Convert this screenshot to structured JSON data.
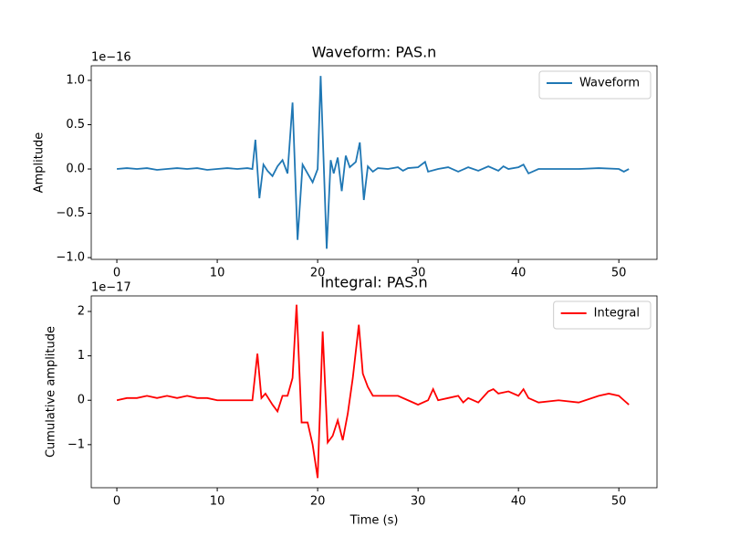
{
  "chart_data": [
    {
      "type": "line",
      "title": "Waveform: PAS.n",
      "ylabel": "Amplitude",
      "y_offset_label": "1e−16",
      "xlim": [
        -2.55,
        53.8
      ],
      "xticks": [
        0,
        10,
        20,
        30,
        40,
        50
      ],
      "ylim": [
        -1.02,
        1.165
      ],
      "yticks": [
        {
          "value": -1,
          "label": "−1.0"
        },
        {
          "value": -0.5,
          "label": "−0.5"
        },
        {
          "value": 0,
          "label": "0.0"
        },
        {
          "value": 0.5,
          "label": "0.5"
        },
        {
          "value": 1,
          "label": "1.0"
        }
      ],
      "legend": "upper right",
      "x": [
        0,
        1,
        2,
        3,
        4,
        5,
        6,
        7,
        8,
        9,
        10,
        11,
        12,
        13,
        13.5,
        13.8,
        14.2,
        14.6,
        15,
        15.5,
        16,
        16.5,
        17,
        17.5,
        18,
        18.5,
        19,
        19.5,
        20,
        20.3,
        20.9,
        21.3,
        21.6,
        22,
        22.4,
        22.8,
        23.2,
        23.8,
        24.2,
        24.6,
        25,
        25.5,
        26,
        27,
        28,
        28.5,
        29,
        30,
        30.7,
        31,
        32,
        33,
        34,
        35,
        36,
        37,
        38,
        38.5,
        39,
        40,
        40.5,
        41,
        42,
        44,
        46,
        48,
        50,
        50.5,
        51
      ],
      "series": [
        {
          "name": "Waveform",
          "color": "#1f77b4",
          "values": [
            0,
            0.01,
            0,
            0.01,
            -0.01,
            0,
            0.01,
            0,
            0.01,
            -0.01,
            0,
            0.01,
            0,
            0.01,
            0,
            0.33,
            -0.33,
            0.05,
            -0.02,
            -0.08,
            0.03,
            0.1,
            -0.05,
            0.75,
            -0.8,
            0.05,
            -0.05,
            -0.15,
            0,
            1.05,
            -0.9,
            0.1,
            -0.05,
            0.13,
            -0.25,
            0.15,
            0.02,
            0.08,
            0.3,
            -0.35,
            0.03,
            -0.03,
            0.01,
            0,
            0.02,
            -0.02,
            0.01,
            0.02,
            0.08,
            -0.03,
            0,
            0.02,
            -0.03,
            0.02,
            -0.02,
            0.03,
            -0.02,
            0.03,
            0,
            0.02,
            0.05,
            -0.05,
            0,
            0,
            0,
            0.01,
            0,
            -0.03,
            0
          ]
        }
      ]
    },
    {
      "type": "line",
      "title": "Integral: PAS.n",
      "xlabel": "Time (s)",
      "ylabel": "Cumulative amplitude",
      "y_offset_label": "1e−17",
      "xlim": [
        -2.55,
        53.8
      ],
      "xticks": [
        0,
        10,
        20,
        30,
        40,
        50
      ],
      "ylim": [
        -1.97,
        2.35
      ],
      "yticks": [
        {
          "value": -1,
          "label": "−1"
        },
        0,
        1,
        2
      ],
      "legend": "upper right",
      "x": [
        0,
        1,
        2,
        3,
        4,
        5,
        6,
        7,
        8,
        9,
        10,
        13.5,
        14,
        14.4,
        14.8,
        15.5,
        16,
        16.5,
        17,
        17.5,
        17.9,
        18.4,
        19,
        19.5,
        20,
        20.5,
        21,
        21.5,
        22,
        22.5,
        23,
        23.5,
        24.1,
        24.5,
        25,
        25.5,
        26,
        27,
        28,
        29,
        30,
        31,
        31.5,
        32,
        33,
        34,
        34.5,
        35,
        36,
        37,
        37.5,
        38,
        39,
        40,
        40.5,
        41,
        42,
        44,
        46,
        48,
        49,
        50,
        50.5,
        51
      ],
      "series": [
        {
          "name": "Integral",
          "color": "#ff0000",
          "values": [
            0,
            0.05,
            0.05,
            0.1,
            0.05,
            0.1,
            0.05,
            0.1,
            0.05,
            0.05,
            0,
            0,
            1.05,
            0.05,
            0.15,
            -0.1,
            -0.25,
            0.1,
            0.1,
            0.5,
            2.15,
            -0.5,
            -0.5,
            -1.0,
            -1.75,
            1.55,
            -0.95,
            -0.8,
            -0.45,
            -0.9,
            -0.3,
            0.5,
            1.7,
            0.6,
            0.3,
            0.1,
            0.1,
            0.1,
            0.1,
            0,
            -0.1,
            0,
            0.25,
            0,
            0.05,
            0.1,
            -0.05,
            0.05,
            -0.05,
            0.2,
            0.25,
            0.15,
            0.2,
            0.1,
            0.25,
            0.05,
            -0.05,
            0,
            -0.05,
            0.1,
            0.15,
            0.1,
            0,
            -0.1
          ]
        }
      ]
    }
  ]
}
